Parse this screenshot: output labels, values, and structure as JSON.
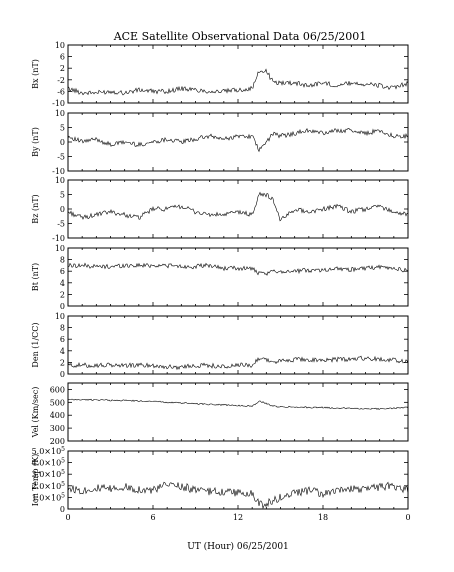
{
  "chart_data": {
    "type": "line",
    "title": "ACE Satellite Observational Data   06/25/2001",
    "xlabel": "UT (Hour)   06/25/2001",
    "x_ticks": [
      "0",
      "6",
      "12",
      "18",
      "0"
    ],
    "x_range": [
      0,
      24
    ],
    "panels": [
      {
        "id": "bx",
        "ylabel": "Bx (nT)",
        "ylim": [
          -10,
          10
        ],
        "ytick_labels": [
          "10",
          "6",
          "2",
          "-2",
          "-6",
          "-10"
        ],
        "ytick_values": [
          10,
          6,
          2,
          -2,
          -6,
          -10
        ],
        "x": [
          0,
          1,
          2,
          3,
          4,
          5,
          6,
          7,
          8,
          9,
          10,
          11,
          12,
          13,
          13.5,
          14,
          14.5,
          15,
          16,
          17,
          18,
          19,
          20,
          21,
          22,
          23,
          24
        ],
        "y": [
          -5,
          -6.5,
          -6.5,
          -6,
          -6.5,
          -5.5,
          -6,
          -6,
          -5,
          -5.5,
          -6,
          -6,
          -5.5,
          -5,
          1,
          1,
          -3,
          -3,
          -3,
          -4,
          -3,
          -4,
          -3,
          -3.5,
          -4,
          -5,
          -3
        ]
      },
      {
        "id": "by",
        "ylabel": "By (nT)",
        "ylim": [
          -10,
          10
        ],
        "ytick_labels": [
          "10",
          "5",
          "0",
          "-5",
          "-10"
        ],
        "ytick_values": [
          10,
          5,
          0,
          -5,
          -10
        ],
        "x": [
          0,
          1,
          2,
          3,
          4,
          5,
          6,
          7,
          8,
          9,
          10,
          11,
          12,
          13,
          13.5,
          14,
          14.5,
          15,
          16,
          17,
          18,
          19,
          20,
          21,
          22,
          23,
          24
        ],
        "y": [
          2,
          0,
          1,
          -1,
          0,
          -1,
          0,
          1,
          0,
          1,
          2,
          1,
          2,
          2,
          -3,
          0,
          3,
          2,
          3,
          4,
          3,
          4,
          4,
          3,
          4,
          2,
          2
        ]
      },
      {
        "id": "bz",
        "ylabel": "Bz (nT)",
        "ylim": [
          -10,
          10
        ],
        "ytick_labels": [
          "10",
          "5",
          "0",
          "-5",
          "-10"
        ],
        "ytick_values": [
          10,
          5,
          0,
          -5,
          -10
        ],
        "x": [
          0,
          1,
          2,
          3,
          4,
          5,
          6,
          7,
          8,
          9,
          10,
          11,
          12,
          13,
          13.5,
          14,
          14.5,
          15,
          16,
          17,
          18,
          19,
          20,
          21,
          22,
          23,
          24
        ],
        "y": [
          -1,
          -3,
          -2,
          -1,
          -2,
          -3,
          0,
          0,
          1,
          -1,
          -2,
          -2,
          -1,
          -2,
          5,
          5,
          3,
          -4,
          0,
          -1,
          0,
          1,
          -1,
          0,
          1,
          -1,
          -2
        ]
      },
      {
        "id": "bt",
        "ylabel": "Bt (nT)",
        "ylim": [
          0,
          10
        ],
        "ytick_labels": [
          "10",
          "8",
          "6",
          "4",
          "2",
          "0"
        ],
        "ytick_values": [
          10,
          8,
          6,
          4,
          2,
          0
        ],
        "x": [
          0,
          1,
          2,
          3,
          4,
          5,
          6,
          7,
          8,
          9,
          10,
          11,
          12,
          13,
          13.5,
          14,
          14.5,
          15,
          16,
          17,
          18,
          19,
          20,
          21,
          22,
          23,
          24
        ],
        "y": [
          7,
          7,
          6.8,
          6.8,
          7,
          7,
          7,
          7,
          6.8,
          6.8,
          7,
          6.5,
          6.5,
          6.5,
          5.5,
          5.5,
          6,
          6,
          6,
          6.2,
          6.2,
          6.5,
          6.3,
          6.5,
          6.7,
          6.5,
          6
        ]
      },
      {
        "id": "den",
        "ylabel": "Den (1/CC)",
        "ylim": [
          0,
          10
        ],
        "ytick_labels": [
          "10",
          "8",
          "6",
          "4",
          "2",
          "0"
        ],
        "ytick_values": [
          10,
          8,
          6,
          4,
          2,
          0
        ],
        "x": [
          0,
          1,
          2,
          3,
          4,
          5,
          6,
          7,
          8,
          9,
          10,
          11,
          12,
          13,
          13.5,
          14,
          14.5,
          15,
          16,
          17,
          18,
          19,
          20,
          21,
          22,
          23,
          24
        ],
        "y": [
          1.5,
          1.5,
          1.5,
          1.5,
          1.5,
          1.5,
          1.5,
          1.2,
          1.2,
          1.5,
          1.5,
          1.2,
          1.5,
          1.5,
          2.8,
          2.5,
          2,
          2.2,
          2.5,
          2.5,
          2.3,
          2.5,
          2.5,
          2.8,
          2.5,
          2.5,
          2
        ]
      },
      {
        "id": "vel",
        "ylabel": "Vel (Km/sec)",
        "ylim": [
          200,
          650
        ],
        "ytick_labels": [
          "600",
          "500",
          "400",
          "300",
          "200"
        ],
        "ytick_values": [
          600,
          500,
          400,
          300,
          200
        ],
        "x": [
          0,
          1,
          2,
          3,
          4,
          5,
          6,
          7,
          8,
          9,
          10,
          11,
          12,
          13,
          13.5,
          14,
          14.5,
          15,
          16,
          17,
          18,
          19,
          20,
          21,
          22,
          23,
          24
        ],
        "y": [
          520,
          520,
          520,
          515,
          515,
          510,
          510,
          500,
          495,
          490,
          485,
          480,
          475,
          470,
          510,
          490,
          470,
          465,
          465,
          460,
          460,
          455,
          455,
          450,
          450,
          455,
          460
        ]
      },
      {
        "id": "temp",
        "ylabel": "Ion Temp (K)",
        "ylim": [
          0,
          500000
        ],
        "ytick_labels": [
          "5.0×10^5",
          "4.0×10^5",
          "3.0×10^5",
          "2.0×10^5",
          "1.0×10^5",
          "0"
        ],
        "ytick_values": [
          500000,
          400000,
          300000,
          200000,
          100000,
          0
        ],
        "x": [
          0,
          1,
          2,
          3,
          4,
          5,
          6,
          7,
          8,
          9,
          10,
          11,
          12,
          13,
          13.5,
          14,
          14.5,
          15,
          16,
          17,
          18,
          19,
          20,
          21,
          22,
          23,
          24
        ],
        "y": [
          180000,
          160000,
          180000,
          170000,
          190000,
          170000,
          160000,
          210000,
          200000,
          160000,
          150000,
          150000,
          140000,
          130000,
          40000,
          40000,
          80000,
          100000,
          140000,
          160000,
          130000,
          150000,
          170000,
          180000,
          190000,
          200000,
          160000
        ]
      }
    ]
  }
}
